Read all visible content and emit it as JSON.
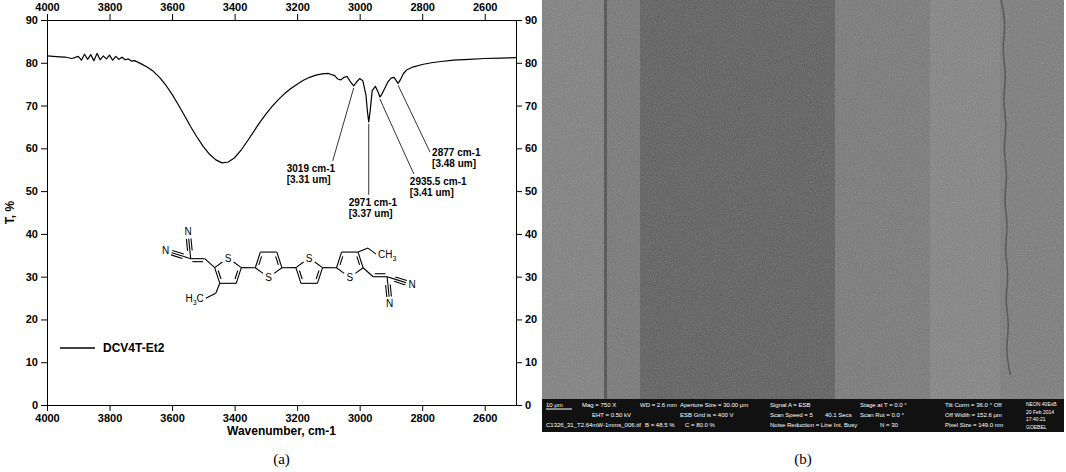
{
  "chart_data": {
    "type": "line",
    "x_label": "Wavenumber, cm-1",
    "y_label": "T, %",
    "xlim": [
      4000,
      2500
    ],
    "xticks": [
      4000,
      3800,
      3600,
      3400,
      3200,
      3000,
      2800,
      2600
    ],
    "ylim": [
      0,
      90
    ],
    "yticks": [
      0,
      10,
      20,
      30,
      40,
      50,
      60,
      70,
      80,
      90
    ],
    "legend": "lower left",
    "x": [
      4000,
      3980,
      3960,
      3940,
      3920,
      3900,
      3890,
      3880,
      3870,
      3860,
      3850,
      3840,
      3830,
      3820,
      3810,
      3800,
      3790,
      3780,
      3770,
      3760,
      3750,
      3740,
      3730,
      3720,
      3700,
      3680,
      3660,
      3640,
      3620,
      3600,
      3580,
      3560,
      3540,
      3520,
      3500,
      3480,
      3460,
      3440,
      3420,
      3400,
      3380,
      3360,
      3340,
      3320,
      3300,
      3280,
      3260,
      3240,
      3220,
      3200,
      3180,
      3160,
      3140,
      3120,
      3100,
      3080,
      3070,
      3060,
      3050,
      3040,
      3030,
      3019,
      3010,
      3000,
      2990,
      2980,
      2975,
      2971,
      2966,
      2960,
      2950,
      2940,
      2935.5,
      2930,
      2920,
      2910,
      2900,
      2890,
      2877,
      2870,
      2860,
      2850,
      2830,
      2800,
      2770,
      2740,
      2700,
      2650,
      2600,
      2550,
      2500
    ],
    "series": [
      {
        "name": "DCV4T-Et2",
        "color": "#000000",
        "values": [
          81.6,
          81.5,
          81.4,
          81.3,
          81,
          81.5,
          80.6,
          82,
          80.8,
          81.9,
          80.5,
          82.2,
          80.7,
          81.6,
          80.9,
          81.8,
          80.6,
          81.5,
          80.8,
          81.3,
          80.7,
          80.9,
          80.4,
          80.5,
          79.8,
          79,
          78,
          76.6,
          74.8,
          72.6,
          70.2,
          67.6,
          65,
          62.6,
          60.4,
          58.6,
          57.3,
          56.6,
          56.8,
          57.8,
          59.5,
          61.6,
          63.8,
          66,
          68,
          69.8,
          71.4,
          72.8,
          74,
          75,
          75.9,
          76.6,
          77.1,
          77.4,
          77.5,
          77,
          76.2,
          76,
          76.6,
          76.8,
          75.6,
          74.6,
          75.5,
          76.3,
          75.8,
          72.5,
          68.5,
          66.2,
          69,
          73.5,
          74.5,
          73,
          72,
          72.5,
          74,
          75.5,
          76.4,
          76.6,
          75.2,
          76,
          77.5,
          78.3,
          79,
          79.6,
          80,
          80.3,
          80.6,
          80.8,
          81,
          81.1,
          81.2
        ]
      }
    ],
    "annotations": [
      {
        "text": [
          "3019 cm-1",
          "[3.31 um]"
        ],
        "x": 3019,
        "y": 74.6
      },
      {
        "text": [
          "2971 cm-1",
          "[3.37 um]"
        ],
        "x": 2971,
        "y": 66.2
      },
      {
        "text": [
          "2935.5 cm-1",
          "[3.41 um]"
        ],
        "x": 2935.5,
        "y": 72
      },
      {
        "text": [
          "2877 cm-1",
          "[3.48 um]"
        ],
        "x": 2877,
        "y": 75.2
      }
    ]
  },
  "structure": {
    "atoms": [
      "N",
      "N",
      "S",
      "S",
      "S",
      "S",
      "CH3",
      "H3C",
      "N",
      "N"
    ]
  },
  "panel_labels": [
    "(a)",
    "(b)"
  ],
  "micrograph": {
    "info": [
      [
        "10 µm",
        "Mag = 750 X",
        "WD = 2.6 mm",
        "Aperture Size = 30.00 µm",
        "Signal A = ESB",
        "Stage at T = 0.0 °",
        "Tilt Corrn = 36.0 ° Off"
      ],
      [
        "EHT = 0.50 kV",
        "ESB Grid is = 400 V",
        "Scan Speed = 5",
        "40.1 Secs",
        "Scan Rot = 0.0 °",
        "Off Width = 152.6 µm"
      ],
      [
        "C1326_31_T2.64mW-1mms_006.tif",
        "B = 48.5 %",
        "C = 80.0 %",
        "Noise Reduction = Line Int. Busy",
        "N = 30",
        "Pixel Size = 149.0 nm"
      ]
    ],
    "stamp": [
      "NEON 40EsB",
      "20 Feb 2014",
      "17:40:21",
      "GOEBEL"
    ]
  }
}
